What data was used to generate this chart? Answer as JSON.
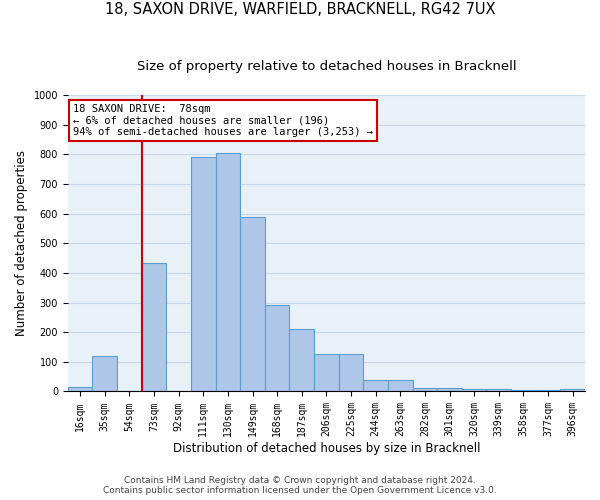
{
  "title_line1": "18, SAXON DRIVE, WARFIELD, BRACKNELL, RG42 7UX",
  "title_line2": "Size of property relative to detached houses in Bracknell",
  "xlabel": "Distribution of detached houses by size in Bracknell",
  "ylabel": "Number of detached properties",
  "categories": [
    "16sqm",
    "35sqm",
    "54sqm",
    "73sqm",
    "92sqm",
    "111sqm",
    "130sqm",
    "149sqm",
    "168sqm",
    "187sqm",
    "206sqm",
    "225sqm",
    "244sqm",
    "263sqm",
    "282sqm",
    "301sqm",
    "320sqm",
    "339sqm",
    "358sqm",
    "377sqm",
    "396sqm"
  ],
  "values": [
    15,
    120,
    0,
    435,
    0,
    790,
    805,
    590,
    290,
    210,
    125,
    125,
    40,
    40,
    12,
    12,
    8,
    8,
    5,
    5,
    8
  ],
  "bar_color": "#aec6e8",
  "bar_edge_color": "#5a9fd4",
  "grid_color": "#c8d8e8",
  "bg_color": "#e8f0f8",
  "annotation_box_color": "#cc0000",
  "vline_bin": 3,
  "annotation_line1": "18 SAXON DRIVE:  78sqm",
  "annotation_line2": "← 6% of detached houses are smaller (196)",
  "annotation_line3": "94% of semi-detached houses are larger (3,253) →",
  "footer1": "Contains HM Land Registry data © Crown copyright and database right 2024.",
  "footer2": "Contains public sector information licensed under the Open Government Licence v3.0.",
  "ylim": [
    0,
    1000
  ],
  "yticks": [
    0,
    100,
    200,
    300,
    400,
    500,
    600,
    700,
    800,
    900,
    1000
  ],
  "title_fontsize": 10.5,
  "subtitle_fontsize": 9.5,
  "axis_label_fontsize": 8.5,
  "tick_fontsize": 7,
  "annotation_fontsize": 7.5,
  "footer_fontsize": 6.5
}
